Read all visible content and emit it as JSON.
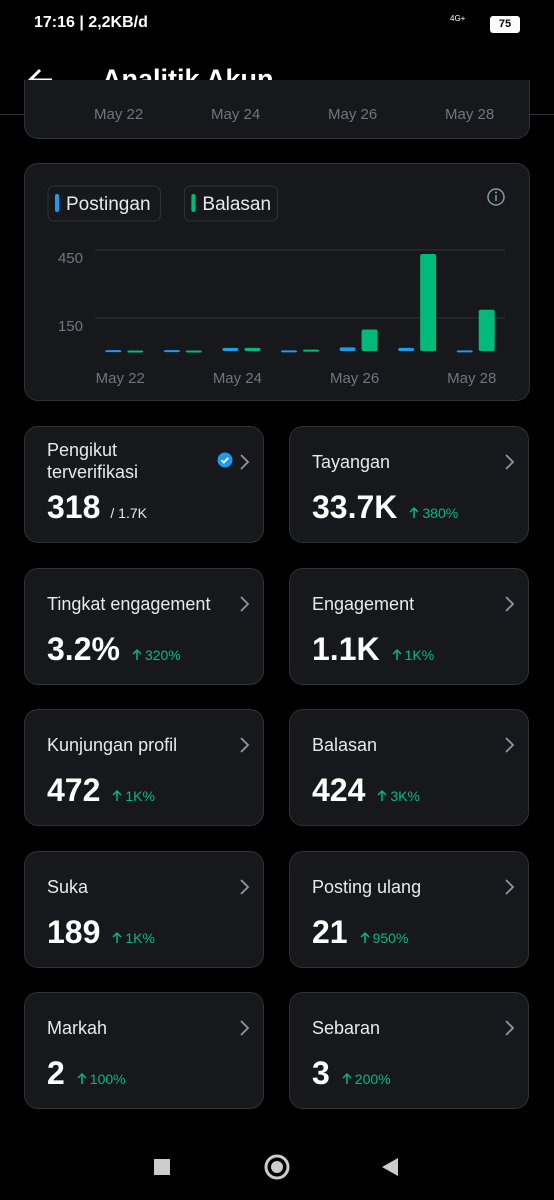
{
  "status_bar": {
    "time": "17:16 | 2,2KB/d",
    "network": "4G+",
    "battery": "75"
  },
  "header": {
    "title": "Analitik Akun"
  },
  "previous_chart": {
    "labels": [
      "May 22",
      "May 24",
      "May 26",
      "May 28"
    ]
  },
  "chart_data": {
    "type": "bar",
    "categories": [
      "May 22",
      null,
      "May 24",
      null,
      "May 26",
      null,
      "May 28"
    ],
    "series": [
      {
        "name": "Postingan",
        "color": "#1d9bf0",
        "values": [
          4,
          4,
          14,
          3,
          16,
          14,
          3
        ]
      },
      {
        "name": "Balasan",
        "color": "#00ba7c",
        "values": [
          2,
          2,
          14,
          6,
          95,
          428,
          182
        ]
      }
    ],
    "ylim": [
      0,
      450
    ],
    "yticks": [
      150,
      450
    ],
    "grid": true
  },
  "cards": [
    {
      "title": "Pengikut terverifikasi",
      "value": "318",
      "sub": "/ 1.7K",
      "verified": true
    },
    {
      "title": "Tayangan",
      "value": "33.7K",
      "change": "380%"
    },
    {
      "title": "Tingkat engagement",
      "value": "3.2%",
      "change": "320%"
    },
    {
      "title": "Engagement",
      "value": "1.1K",
      "change": "1K%"
    },
    {
      "title": "Kunjungan profil",
      "value": "472",
      "change": "1K%"
    },
    {
      "title": "Balasan",
      "value": "424",
      "change": "3K%"
    },
    {
      "title": "Suka",
      "value": "189",
      "change": "1K%"
    },
    {
      "title": "Posting ulang",
      "value": "21",
      "change": "950%"
    },
    {
      "title": "Markah",
      "value": "2",
      "change": "100%"
    },
    {
      "title": "Sebaran",
      "value": "3",
      "change": "200%"
    }
  ]
}
